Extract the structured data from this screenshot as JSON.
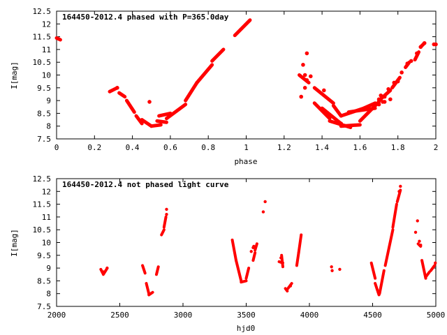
{
  "colors": {
    "points": "#ff0000",
    "axes": "#000000",
    "background": "#ffffff"
  },
  "chart_data": [
    {
      "type": "scatter",
      "title": "164450-2012.4 phased with P=365.0day",
      "xlabel": "phase",
      "ylabel": "I[mag]",
      "xlim": [
        0,
        2
      ],
      "ylim": [
        12.5,
        7.5
      ],
      "y_inverted": true,
      "x_ticks": [
        0,
        0.2,
        0.4,
        0.6,
        0.8,
        1,
        1.2,
        1.4,
        1.6,
        1.8,
        2
      ],
      "x_tick_labels": [
        "0",
        "0.2",
        "0.4",
        "0.6",
        "0.8",
        "1",
        "1.2",
        "1.4",
        "1.6",
        "1.8",
        "2"
      ],
      "y_ticks": [
        7.5,
        8,
        8.5,
        9,
        9.5,
        10,
        10.5,
        11,
        11.5,
        12,
        12.5
      ],
      "y_tick_labels": [
        "7.5",
        "8",
        "8.5",
        "9",
        "9.5",
        "10",
        "10.5",
        "11",
        "11.5",
        "12",
        "12.5"
      ],
      "grid": false,
      "segments": [
        [
          0.0,
          11.45,
          0.02,
          11.38
        ],
        [
          0.28,
          9.35,
          0.32,
          9.5
        ],
        [
          0.33,
          9.3,
          0.36,
          9.15
        ],
        [
          0.37,
          9.0,
          0.41,
          8.55
        ],
        [
          0.42,
          8.4,
          0.45,
          8.1
        ],
        [
          0.45,
          8.25,
          0.5,
          8.0
        ],
        [
          0.5,
          8.0,
          0.55,
          8.05
        ],
        [
          0.53,
          8.2,
          0.58,
          8.15
        ],
        [
          0.58,
          8.3,
          0.68,
          8.85
        ],
        [
          0.54,
          8.4,
          0.6,
          8.5
        ],
        [
          0.68,
          9.0,
          0.74,
          9.7
        ],
        [
          0.74,
          9.7,
          0.82,
          10.4
        ],
        [
          0.82,
          10.55,
          0.88,
          11.0
        ],
        [
          0.94,
          11.55,
          1.02,
          12.15
        ],
        [
          1.28,
          10.0,
          1.33,
          9.7
        ],
        [
          1.36,
          9.5,
          1.46,
          8.9
        ],
        [
          1.46,
          8.8,
          1.5,
          8.4
        ],
        [
          1.5,
          8.4,
          1.62,
          8.7
        ],
        [
          1.62,
          8.7,
          1.68,
          8.9
        ],
        [
          1.4,
          8.7,
          1.5,
          8.1
        ],
        [
          1.5,
          8.0,
          1.6,
          8.05
        ],
        [
          1.6,
          8.2,
          1.7,
          8.95
        ],
        [
          1.36,
          8.9,
          1.44,
          8.3
        ],
        [
          1.44,
          8.2,
          1.55,
          7.95
        ],
        [
          1.54,
          8.55,
          1.68,
          8.7
        ],
        [
          1.7,
          9.0,
          1.76,
          9.4
        ],
        [
          1.77,
          9.5,
          1.81,
          9.9
        ],
        [
          1.84,
          10.3,
          1.86,
          10.5
        ],
        [
          1.89,
          10.6,
          1.91,
          10.9
        ],
        [
          1.92,
          11.1,
          1.94,
          11.25
        ]
      ],
      "points": [
        [
          0.49,
          8.95
        ],
        [
          0.32,
          9.5
        ],
        [
          1.29,
          9.15
        ],
        [
          1.31,
          9.5
        ],
        [
          1.32,
          9.8
        ],
        [
          1.3,
          10.4
        ],
        [
          1.32,
          10.85
        ],
        [
          1.5,
          8.1
        ],
        [
          1.7,
          8.85
        ],
        [
          1.73,
          8.95
        ],
        [
          1.76,
          9.05
        ],
        [
          1.75,
          9.45
        ],
        [
          1.78,
          9.7
        ],
        [
          1.8,
          9.75
        ],
        [
          1.82,
          10.1
        ],
        [
          1.85,
          10.45
        ],
        [
          1.87,
          10.55
        ],
        [
          1.9,
          10.85
        ],
        [
          1.92,
          11.1
        ],
        [
          1.94,
          11.25
        ],
        [
          1.99,
          11.2
        ],
        [
          2.0,
          11.2
        ],
        [
          1.73,
          9.15
        ],
        [
          1.71,
          9.2
        ],
        [
          1.7,
          9.05
        ],
        [
          1.72,
          8.95
        ],
        [
          1.31,
          10.0
        ],
        [
          1.34,
          9.95
        ],
        [
          1.41,
          9.4
        ]
      ]
    },
    {
      "type": "scatter",
      "title": "164450-2012.4 not phased light curve",
      "xlabel": "hjd0",
      "ylabel": "I[mag]",
      "xlim": [
        2000,
        5000
      ],
      "ylim": [
        12.5,
        7.5
      ],
      "y_inverted": true,
      "x_ticks": [
        2000,
        2500,
        3000,
        3500,
        4000,
        4500,
        5000
      ],
      "x_tick_labels": [
        "2000",
        "2500",
        "3000",
        "3500",
        "4000",
        "4500",
        "5000"
      ],
      "y_ticks": [
        7.5,
        8,
        8.5,
        9,
        9.5,
        10,
        10.5,
        11,
        11.5,
        12,
        12.5
      ],
      "y_tick_labels": [
        "7.5",
        "8",
        "8.5",
        "9",
        "9.5",
        "10",
        "10.5",
        "11",
        "11.5",
        "12",
        "12.5"
      ],
      "grid": false,
      "segments": [
        [
          2350,
          8.95,
          2365,
          8.8
        ],
        [
          2370,
          8.75,
          2395,
          8.95
        ],
        [
          2680,
          9.1,
          2700,
          8.8
        ],
        [
          2710,
          8.4,
          2730,
          8.0
        ],
        [
          2730,
          7.95,
          2760,
          8.05
        ],
        [
          2790,
          8.75,
          2805,
          9.05
        ],
        [
          2830,
          10.3,
          2850,
          10.5
        ],
        [
          2850,
          10.6,
          2865,
          11.0
        ],
        [
          3390,
          10.1,
          3420,
          9.3
        ],
        [
          3420,
          9.3,
          3460,
          8.5
        ],
        [
          3460,
          8.45,
          3500,
          8.5
        ],
        [
          3500,
          8.6,
          3520,
          9.0
        ],
        [
          3555,
          9.3,
          3570,
          9.6
        ],
        [
          3570,
          9.7,
          3585,
          9.95
        ],
        [
          3760,
          9.25,
          3790,
          9.2
        ],
        [
          3780,
          9.5,
          3790,
          9.05
        ],
        [
          3810,
          8.2,
          3825,
          8.1
        ],
        [
          3830,
          8.2,
          3860,
          8.4
        ],
        [
          3900,
          9.1,
          3915,
          9.6
        ],
        [
          3915,
          9.6,
          3935,
          10.3
        ],
        [
          4490,
          9.2,
          4520,
          8.6
        ],
        [
          4520,
          8.4,
          4550,
          7.95
        ],
        [
          4555,
          8.0,
          4590,
          8.9
        ],
        [
          4600,
          9.1,
          4660,
          10.5
        ],
        [
          4660,
          10.6,
          4690,
          11.5
        ],
        [
          4695,
          11.6,
          4720,
          12.05
        ],
        [
          4860,
          9.95,
          4880,
          9.85
        ],
        [
          4890,
          9.3,
          4920,
          8.6
        ],
        [
          4920,
          8.65,
          4950,
          8.85
        ],
        [
          4960,
          8.9,
          4990,
          9.1
        ]
      ],
      "points": [
        [
          2870,
          11.3
        ],
        [
          3635,
          11.2
        ],
        [
          3650,
          11.6
        ],
        [
          3540,
          9.65
        ],
        [
          3555,
          9.8
        ],
        [
          4180,
          8.9
        ],
        [
          4175,
          9.05
        ],
        [
          4240,
          8.95
        ],
        [
          4720,
          12.2
        ],
        [
          4710,
          12.0
        ],
        [
          4840,
          10.4
        ],
        [
          4855,
          10.85
        ],
        [
          4870,
          10.05
        ],
        [
          4880,
          9.9
        ],
        [
          4996,
          9.2
        ],
        [
          2370,
          8.85
        ],
        [
          2400,
          9.0
        ],
        [
          2870,
          11.1
        ],
        [
          3775,
          9.4
        ],
        [
          3850,
          8.3
        ],
        [
          3560,
          9.85
        ]
      ]
    }
  ]
}
